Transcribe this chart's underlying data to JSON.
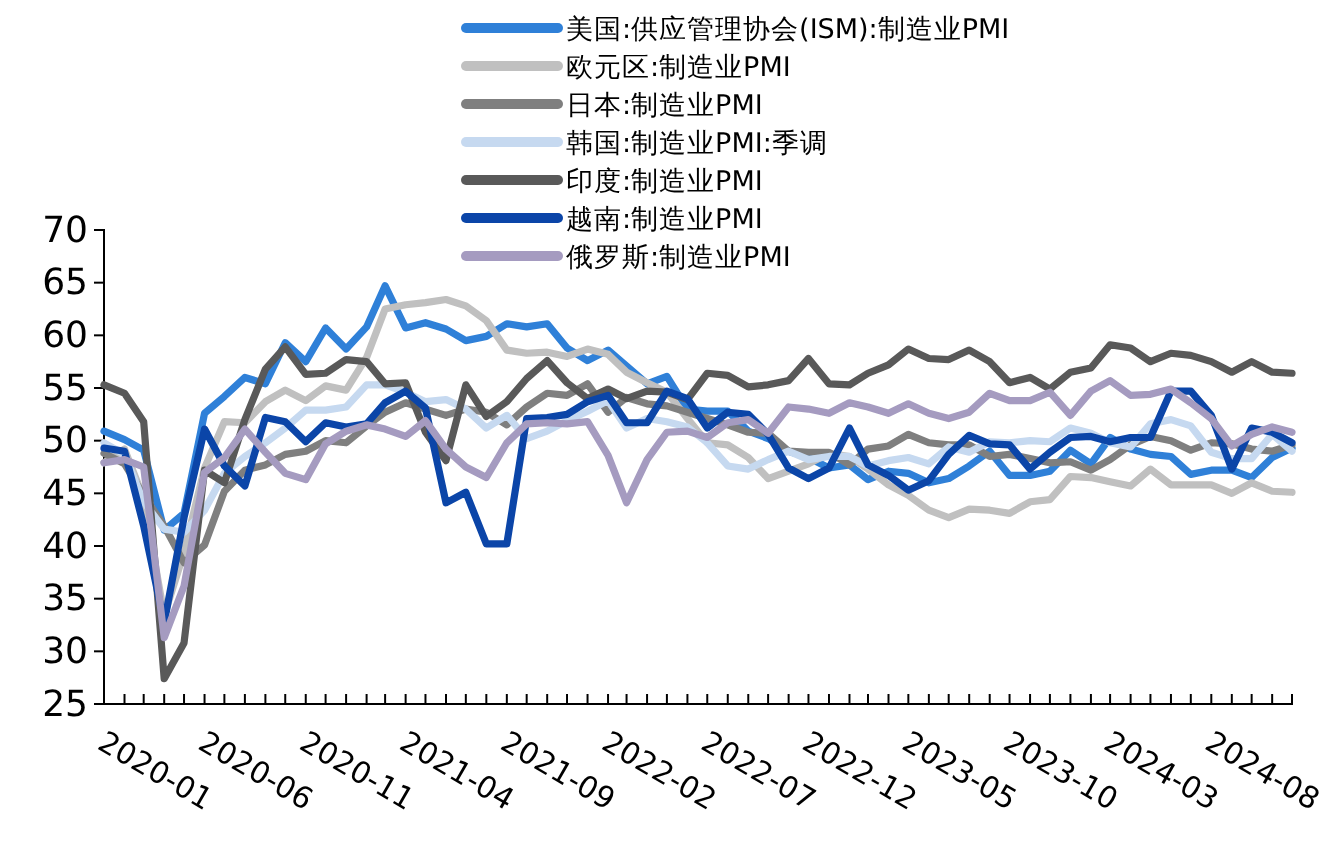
{
  "chart_data": {
    "type": "line",
    "x": [
      "2020-01",
      "2020-02",
      "2020-03",
      "2020-04",
      "2020-05",
      "2020-06",
      "2020-07",
      "2020-08",
      "2020-09",
      "2020-10",
      "2020-11",
      "2020-12",
      "2021-01",
      "2021-02",
      "2021-03",
      "2021-04",
      "2021-05",
      "2021-06",
      "2021-07",
      "2021-08",
      "2021-09",
      "2021-10",
      "2021-11",
      "2021-12",
      "2022-01",
      "2022-02",
      "2022-03",
      "2022-04",
      "2022-05",
      "2022-06",
      "2022-07",
      "2022-08",
      "2022-09",
      "2022-10",
      "2022-11",
      "2022-12",
      "2023-01",
      "2023-02",
      "2023-03",
      "2023-04",
      "2023-05",
      "2023-06",
      "2023-07",
      "2023-08",
      "2023-09",
      "2023-10",
      "2023-11",
      "2023-12",
      "2024-01",
      "2024-02",
      "2024-03",
      "2024-04",
      "2024-05",
      "2024-06",
      "2024-07",
      "2024-08",
      "2024-09",
      "2024-10",
      "2024-11",
      "2024-12"
    ],
    "series": [
      {
        "name": "美国:供应管理协会(ISM):制造业PMI",
        "color": "#2f80d8",
        "values": [
          50.9,
          50.1,
          49.1,
          41.5,
          43.1,
          52.6,
          54.2,
          56.0,
          55.4,
          59.3,
          57.5,
          60.7,
          58.7,
          60.8,
          64.7,
          60.7,
          61.2,
          60.6,
          59.5,
          59.9,
          61.1,
          60.8,
          61.1,
          58.8,
          57.6,
          58.6,
          57.1,
          55.4,
          56.1,
          53.0,
          52.8,
          52.8,
          50.9,
          50.2,
          49.0,
          48.4,
          47.4,
          47.7,
          46.3,
          47.1,
          46.9,
          46.0,
          46.4,
          47.6,
          49.0,
          46.7,
          46.7,
          47.1,
          49.1,
          47.8,
          50.3,
          49.2,
          48.7,
          48.5,
          46.8,
          47.2,
          47.2,
          46.5,
          48.4,
          49.3
        ]
      },
      {
        "name": "欧元区:制造业PMI",
        "color": "#c0c0c0",
        "values": [
          47.9,
          49.2,
          44.5,
          33.4,
          39.4,
          47.4,
          51.8,
          51.7,
          53.7,
          54.8,
          53.8,
          55.2,
          54.8,
          57.9,
          62.5,
          62.9,
          63.1,
          63.4,
          62.8,
          61.4,
          58.6,
          58.3,
          58.4,
          58.0,
          58.7,
          58.2,
          56.5,
          55.5,
          54.6,
          52.1,
          49.8,
          49.6,
          48.4,
          46.4,
          47.1,
          47.8,
          48.8,
          48.5,
          47.3,
          45.8,
          44.8,
          43.4,
          42.7,
          43.5,
          43.4,
          43.1,
          44.2,
          44.4,
          46.6,
          46.5,
          46.1,
          45.7,
          47.3,
          45.8,
          45.8,
          45.8,
          45.0,
          46.0,
          45.2,
          45.1
        ]
      },
      {
        "name": "日本:制造业PMI",
        "color": "#7f7f7f",
        "values": [
          48.8,
          47.8,
          44.8,
          41.9,
          38.4,
          40.1,
          45.2,
          47.2,
          47.7,
          48.7,
          49.0,
          50.0,
          49.8,
          51.4,
          52.7,
          53.6,
          53.0,
          52.4,
          53.0,
          52.7,
          51.5,
          53.2,
          54.5,
          54.3,
          55.4,
          52.7,
          54.1,
          53.5,
          53.3,
          52.7,
          52.1,
          51.5,
          50.8,
          50.7,
          49.0,
          48.9,
          48.9,
          47.7,
          49.2,
          49.5,
          50.6,
          49.8,
          49.6,
          49.6,
          48.5,
          48.7,
          48.3,
          47.9,
          48.0,
          47.2,
          48.2,
          49.6,
          50.4,
          50.0,
          49.1,
          49.8,
          49.7,
          49.2,
          49.0,
          49.6
        ]
      },
      {
        "name": "韩国:制造业PMI:季调",
        "color": "#c6d9f0",
        "values": [
          49.8,
          48.7,
          44.2,
          41.6,
          41.3,
          43.4,
          46.9,
          48.5,
          49.8,
          51.2,
          52.9,
          52.9,
          53.2,
          55.3,
          55.3,
          54.6,
          53.7,
          53.9,
          53.0,
          51.2,
          52.4,
          50.2,
          50.9,
          51.9,
          52.8,
          53.8,
          51.2,
          52.1,
          51.8,
          51.3,
          49.8,
          47.6,
          47.3,
          48.2,
          49.0,
          48.2,
          48.5,
          48.5,
          47.6,
          48.1,
          48.4,
          47.8,
          49.4,
          48.9,
          49.9,
          49.8,
          50.0,
          49.9,
          51.2,
          50.7,
          49.8,
          49.4,
          51.6,
          52.0,
          51.4,
          48.9,
          48.3,
          48.3,
          50.6,
          49.0
        ]
      },
      {
        "name": "印度:制造业PMI",
        "color": "#595959",
        "values": [
          55.3,
          54.5,
          51.8,
          27.4,
          30.8,
          47.2,
          46.0,
          52.0,
          56.8,
          58.9,
          56.3,
          56.4,
          57.7,
          57.5,
          55.4,
          55.5,
          50.8,
          48.1,
          55.3,
          52.3,
          53.7,
          55.9,
          57.6,
          55.5,
          54.0,
          54.9,
          54.0,
          54.7,
          54.6,
          53.9,
          56.4,
          56.2,
          55.1,
          55.3,
          55.7,
          57.8,
          55.4,
          55.3,
          56.4,
          57.2,
          58.7,
          57.8,
          57.7,
          58.6,
          57.5,
          55.5,
          56.0,
          54.9,
          56.5,
          56.9,
          59.1,
          58.8,
          57.5,
          58.3,
          58.1,
          57.5,
          56.5,
          57.5,
          56.5,
          56.4
        ]
      },
      {
        "name": "越南:制造业PMI",
        "color": "#0b45a8",
        "values": [
          49.3,
          49.0,
          41.9,
          32.7,
          42.7,
          51.1,
          47.6,
          45.7,
          52.2,
          51.8,
          49.9,
          51.7,
          51.3,
          51.6,
          53.6,
          54.7,
          53.1,
          44.1,
          45.1,
          40.2,
          40.2,
          52.1,
          52.2,
          52.5,
          53.7,
          54.3,
          51.7,
          51.7,
          54.7,
          54.0,
          51.2,
          52.7,
          52.5,
          50.6,
          47.4,
          46.4,
          47.4,
          51.2,
          47.7,
          46.7,
          45.3,
          46.2,
          48.7,
          50.5,
          49.7,
          49.6,
          47.3,
          48.9,
          50.3,
          50.4,
          49.9,
          50.3,
          50.3,
          54.7,
          54.7,
          52.4,
          47.3,
          51.2,
          50.8,
          49.8
        ]
      },
      {
        "name": "俄罗斯:制造业PMI",
        "color": "#a59bc0",
        "values": [
          47.9,
          48.2,
          47.5,
          31.3,
          36.2,
          47.0,
          48.4,
          51.1,
          48.9,
          46.9,
          46.3,
          49.7,
          50.9,
          51.5,
          51.1,
          50.4,
          51.9,
          49.2,
          47.5,
          46.5,
          49.8,
          51.6,
          51.7,
          51.6,
          51.8,
          48.6,
          44.1,
          48.2,
          50.8,
          50.9,
          50.3,
          51.7,
          52.0,
          50.7,
          53.2,
          53.0,
          52.6,
          53.6,
          53.2,
          52.6,
          53.5,
          52.6,
          52.1,
          52.7,
          54.5,
          53.8,
          53.8,
          54.6,
          52.4,
          54.7,
          55.7,
          54.3,
          54.4,
          54.9,
          53.6,
          52.1,
          49.5,
          50.6,
          51.3,
          50.8
        ]
      }
    ],
    "xlim": [
      "2020-01",
      "2024-12"
    ],
    "xticks": [
      {
        "value": "2020-01",
        "label": "2020-01"
      },
      {
        "value": "2020-02",
        "label": null
      },
      {
        "value": "2020-03",
        "label": null
      },
      {
        "value": "2020-04",
        "label": null
      },
      {
        "value": "2020-05",
        "label": null
      },
      {
        "value": "2020-06",
        "label": "2020-06"
      },
      {
        "value": "2020-07",
        "label": null
      },
      {
        "value": "2020-08",
        "label": null
      },
      {
        "value": "2020-09",
        "label": null
      },
      {
        "value": "2020-10",
        "label": null
      },
      {
        "value": "2020-11",
        "label": "2020-11"
      },
      {
        "value": "2020-12",
        "label": null
      },
      {
        "value": "2021-01",
        "label": null
      },
      {
        "value": "2021-02",
        "label": null
      },
      {
        "value": "2021-03",
        "label": null
      },
      {
        "value": "2021-04",
        "label": "2021-04"
      },
      {
        "value": "2021-05",
        "label": null
      },
      {
        "value": "2021-06",
        "label": null
      },
      {
        "value": "2021-07",
        "label": null
      },
      {
        "value": "2021-08",
        "label": null
      },
      {
        "value": "2021-09",
        "label": "2021-09"
      },
      {
        "value": "2021-10",
        "label": null
      },
      {
        "value": "2021-11",
        "label": null
      },
      {
        "value": "2021-12",
        "label": null
      },
      {
        "value": "2022-01",
        "label": null
      },
      {
        "value": "2022-02",
        "label": "2022-02"
      },
      {
        "value": "2022-03",
        "label": null
      },
      {
        "value": "2022-04",
        "label": null
      },
      {
        "value": "2022-05",
        "label": null
      },
      {
        "value": "2022-06",
        "label": null
      },
      {
        "value": "2022-07",
        "label": "2022-07"
      },
      {
        "value": "2022-08",
        "label": null
      },
      {
        "value": "2022-09",
        "label": null
      },
      {
        "value": "2022-10",
        "label": null
      },
      {
        "value": "2022-11",
        "label": null
      },
      {
        "value": "2022-12",
        "label": "2022-12"
      },
      {
        "value": "2023-01",
        "label": null
      },
      {
        "value": "2023-02",
        "label": null
      },
      {
        "value": "2023-03",
        "label": null
      },
      {
        "value": "2023-04",
        "label": null
      },
      {
        "value": "2023-05",
        "label": "2023-05"
      },
      {
        "value": "2023-06",
        "label": null
      },
      {
        "value": "2023-07",
        "label": null
      },
      {
        "value": "2023-08",
        "label": null
      },
      {
        "value": "2023-09",
        "label": null
      },
      {
        "value": "2023-10",
        "label": "2023-10"
      },
      {
        "value": "2023-11",
        "label": null
      },
      {
        "value": "2023-12",
        "label": null
      },
      {
        "value": "2024-01",
        "label": null
      },
      {
        "value": "2024-02",
        "label": null
      },
      {
        "value": "2024-03",
        "label": "2024-03"
      },
      {
        "value": "2024-04",
        "label": null
      },
      {
        "value": "2024-05",
        "label": null
      },
      {
        "value": "2024-06",
        "label": null
      },
      {
        "value": "2024-07",
        "label": null
      },
      {
        "value": "2024-08",
        "label": "2024-08"
      },
      {
        "value": "2024-09",
        "label": null
      },
      {
        "value": "2024-10",
        "label": null
      },
      {
        "value": "2024-11",
        "label": null
      },
      {
        "value": "2024-12",
        "label": null
      }
    ],
    "ylim": [
      25,
      70
    ],
    "yticks": [
      25,
      30,
      35,
      40,
      45,
      50,
      55,
      60,
      65,
      70
    ],
    "grid": false,
    "legend": "top",
    "line_style": "solid",
    "marker": "none"
  }
}
